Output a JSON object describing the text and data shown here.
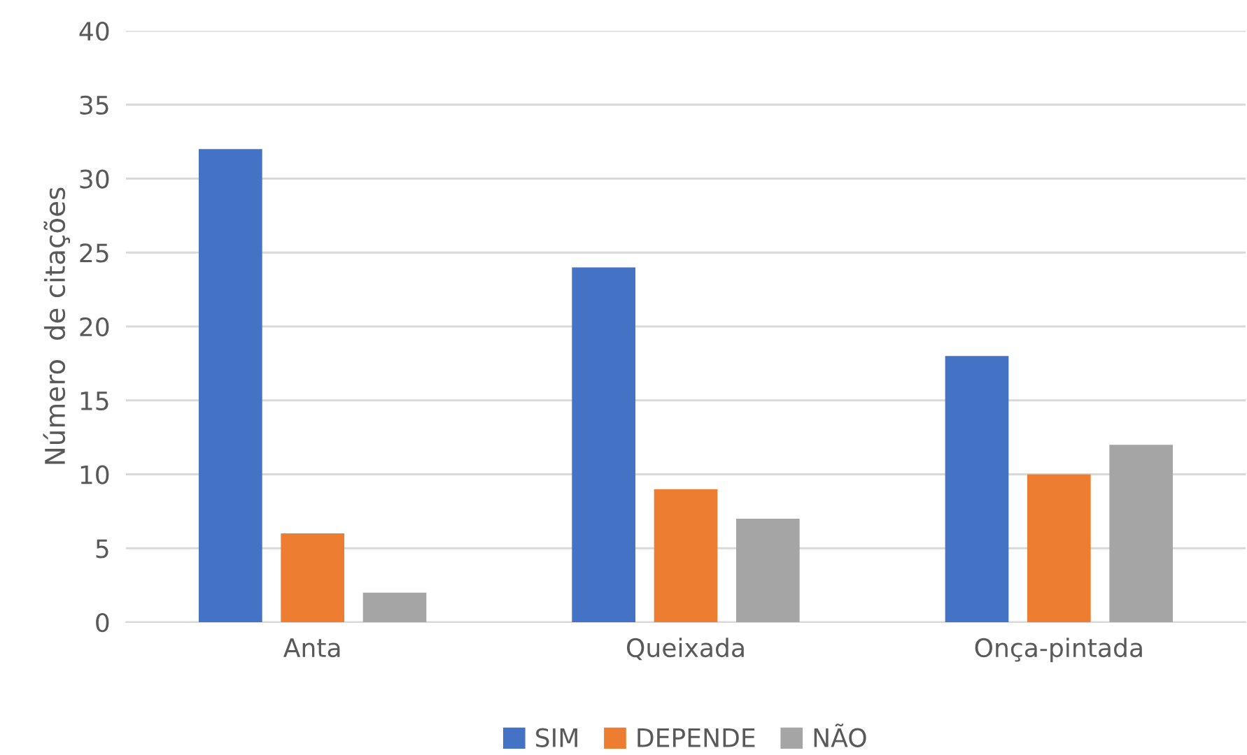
{
  "chart_data": {
    "type": "bar",
    "ylabel": "Número  de citações",
    "categories": [
      "Anta",
      "Queixada",
      "Onça-pintada"
    ],
    "series": [
      {
        "name": "SIM",
        "color": "#4472c4",
        "values": [
          32,
          24,
          18
        ]
      },
      {
        "name": "DEPENDE",
        "color": "#ed7d31",
        "values": [
          6,
          9,
          10
        ]
      },
      {
        "name": "NÃO",
        "color": "#a5a5a5",
        "values": [
          2,
          7,
          12
        ]
      }
    ],
    "ylim": [
      0,
      40
    ],
    "yticks": [
      0,
      5,
      10,
      15,
      20,
      25,
      30,
      35,
      40
    ],
    "grid": "y",
    "legend": "bottom"
  }
}
